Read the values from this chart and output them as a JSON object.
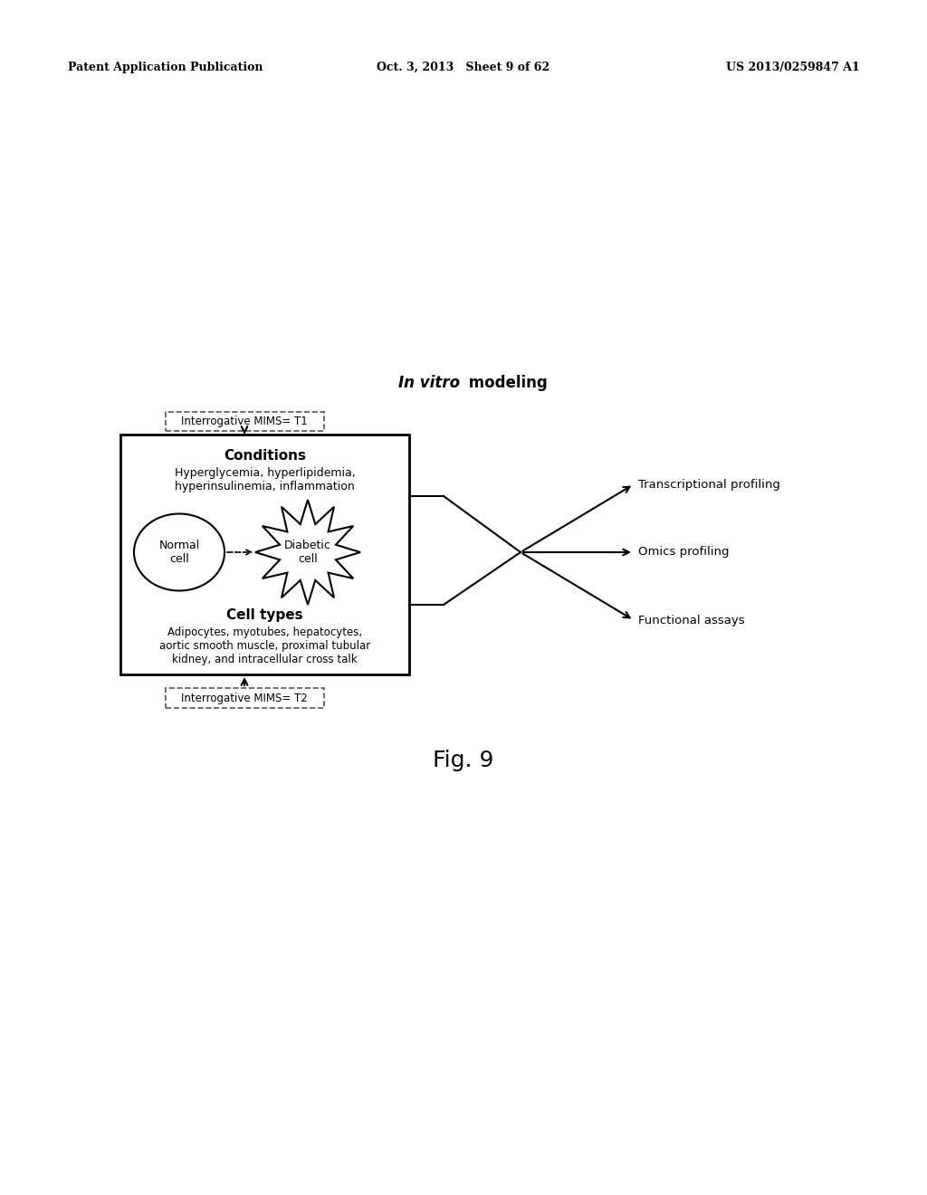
{
  "bg_color": "#ffffff",
  "header_left": "Patent Application Publication",
  "header_center": "Oct. 3, 2013   Sheet 9 of 62",
  "header_right": "US 2013/0259847 A1",
  "title_italic": "In vitro",
  "title_rest": " modeling",
  "fig_label": "Fig. 9",
  "box_top_label": "Interrogative MIMS= T1",
  "box_bottom_label": "Interrogative MIMS= T2",
  "conditions_title": "Conditions",
  "conditions_text": "Hyperglycemia, hyperlipidemia,\nhyperinsulinemia, inflammation",
  "celltypes_title": "Cell types",
  "celltypes_text": "Adipocytes, myotubes, hepatocytes,\naortic smooth muscle, proximal tubular\nkidney, and intracellular cross talk",
  "normal_cell_label": "Normal\ncell",
  "diabetic_cell_label": "Diabetic\ncell",
  "output_labels": [
    "Transcriptional profiling",
    "Omics profiling",
    "Functional assays"
  ],
  "font_color": "#000000"
}
